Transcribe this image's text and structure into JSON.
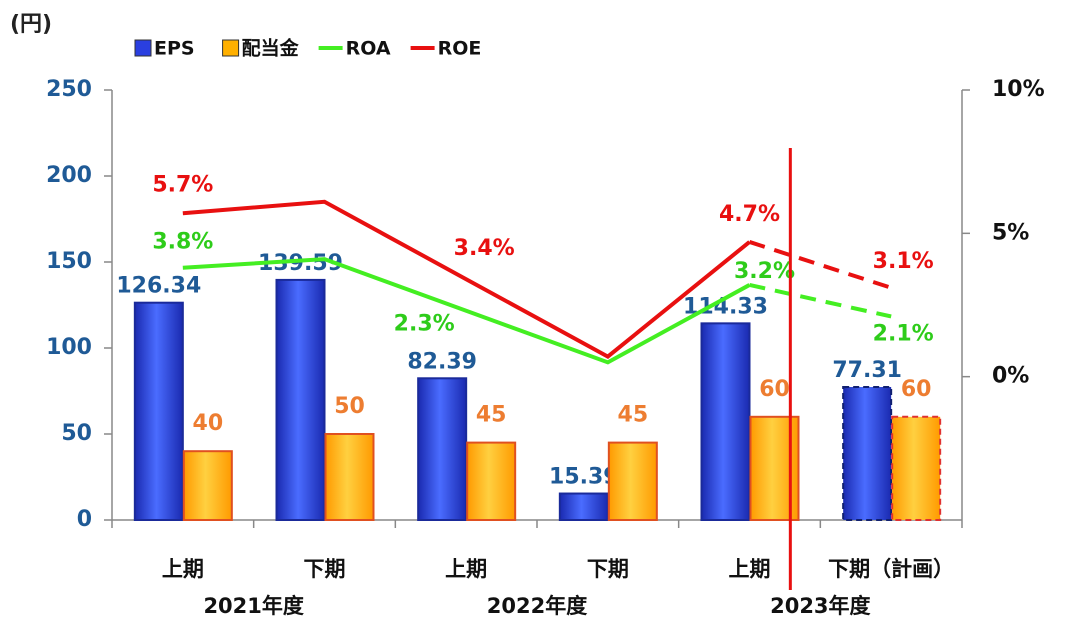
{
  "chart_data": {
    "type": "bar_line",
    "y_label": "(円)",
    "categories": [
      "上期",
      "下期",
      "上期",
      "下期",
      "上期",
      "下期（計画）"
    ],
    "groups": [
      {
        "label": "2021年度",
        "span": [
          0,
          1
        ]
      },
      {
        "label": "2022年度",
        "span": [
          2,
          3
        ]
      },
      {
        "label": "2023年度",
        "span": [
          4,
          5
        ]
      }
    ],
    "planned_from": 5,
    "series": [
      {
        "name": "EPS",
        "kind": "bar",
        "color": "#2a3fe0",
        "values": [
          126.34,
          139.59,
          82.39,
          15.39,
          114.33,
          77.31
        ],
        "label_color": "#1f5a96"
      },
      {
        "name": "配当金",
        "kind": "bar",
        "color": "#ffb000",
        "values": [
          40,
          50,
          45,
          45,
          60,
          60
        ],
        "label_color": "#ed7d31"
      },
      {
        "name": "ROA",
        "kind": "line",
        "axis": "y2",
        "color": "#44ee22",
        "values": [
          3.8,
          4.1,
          2.3,
          0.5,
          3.2,
          2.1
        ],
        "value_labels": [
          "3.8%",
          null,
          "2.3%",
          null,
          "3.2%",
          "2.1%"
        ],
        "label_color": "#2ecc1a"
      },
      {
        "name": "ROE",
        "kind": "line",
        "axis": "y2",
        "color": "#e81010",
        "values": [
          5.7,
          6.1,
          3.4,
          0.7,
          4.7,
          3.1
        ],
        "value_labels": [
          "5.7%",
          null,
          "3.4%",
          null,
          "4.7%",
          "3.1%"
        ],
        "label_color": "#e81010"
      }
    ],
    "ylim": [
      0,
      250
    ],
    "yticks": [
      0,
      50,
      100,
      150,
      200,
      250
    ],
    "y2lim": [
      -5,
      10
    ],
    "y2ticks": [
      {
        "value": 0,
        "label": "0%"
      },
      {
        "value": 5,
        "label": "5%"
      },
      {
        "value": 10,
        "label": "10%"
      }
    ]
  }
}
